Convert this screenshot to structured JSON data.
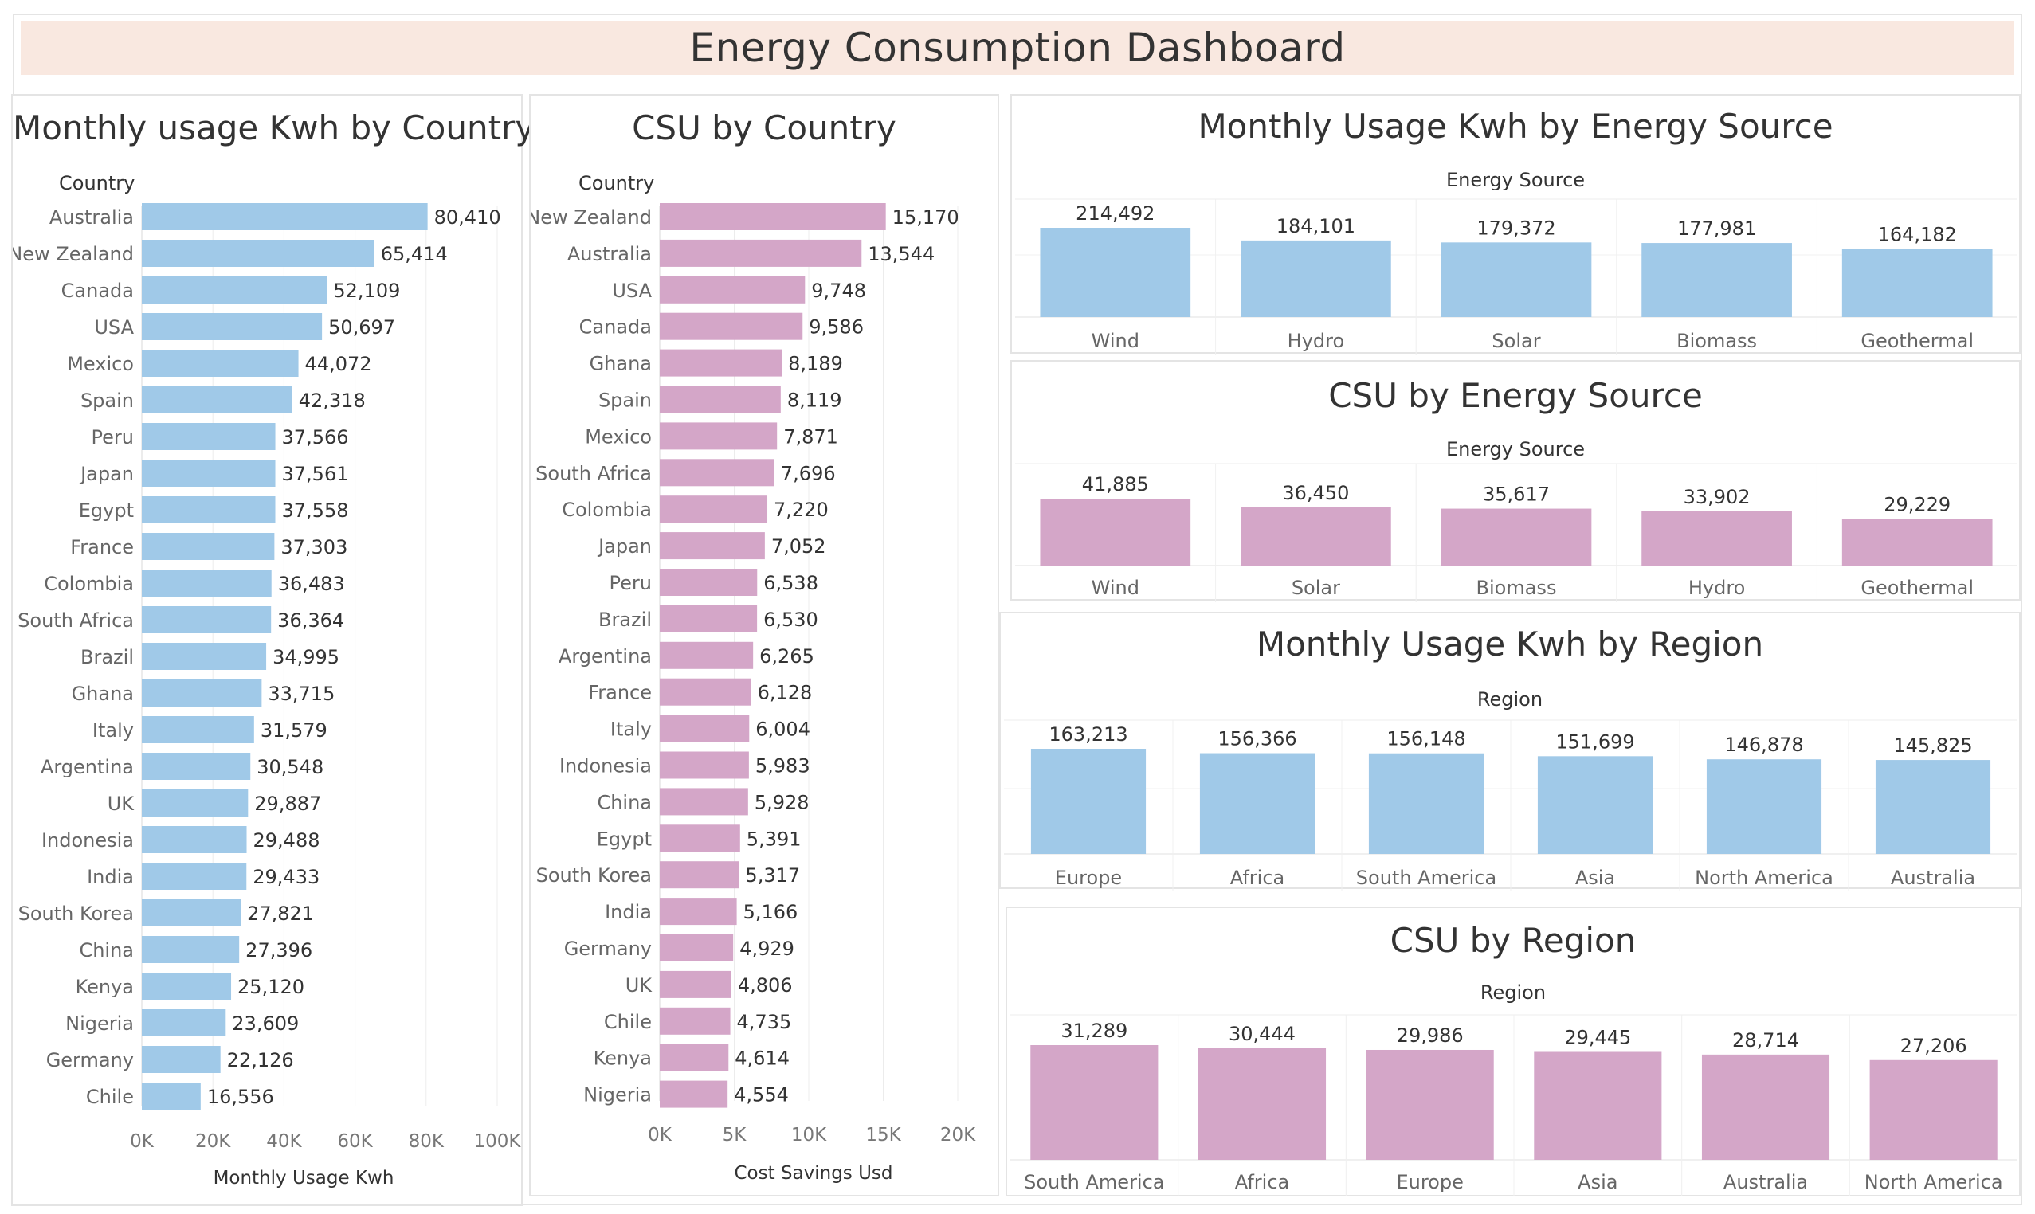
{
  "dashboard": {
    "title": "Energy Consumption Dashboard"
  },
  "colors": {
    "blue": "#a0c9e8",
    "pink": "#d4a6c8",
    "banner": "#f9e8e0"
  },
  "chart_data": [
    {
      "id": "usage_by_country",
      "type": "bar",
      "orientation": "horizontal",
      "title": "Monthly usage Kwh by Country",
      "dimension": "Country",
      "xlabel": "Monthly Usage Kwh",
      "xlim": [
        0,
        100000
      ],
      "ticks": [
        "0K",
        "20K",
        "40K",
        "60K",
        "80K",
        "100K"
      ],
      "tick_values": [
        0,
        20000,
        40000,
        60000,
        80000,
        100000
      ],
      "color": "#a0c9e8",
      "categories": [
        "Australia",
        "New Zealand",
        "Canada",
        "USA",
        "Mexico",
        "Spain",
        "Peru",
        "Japan",
        "Egypt",
        "France",
        "Colombia",
        "South Africa",
        "Brazil",
        "Ghana",
        "Italy",
        "Argentina",
        "UK",
        "Indonesia",
        "India",
        "South Korea",
        "China",
        "Kenya",
        "Nigeria",
        "Germany",
        "Chile"
      ],
      "values": [
        80410,
        65414,
        52109,
        50697,
        44072,
        42318,
        37566,
        37561,
        37558,
        37303,
        36483,
        36364,
        34995,
        33715,
        31579,
        30548,
        29887,
        29488,
        29433,
        27821,
        27396,
        25120,
        23609,
        22126,
        16556
      ],
      "labels": [
        "80,410",
        "65,414",
        "52,109",
        "50,697",
        "44,072",
        "42,318",
        "37,566",
        "37,561",
        "37,558",
        "37,303",
        "36,483",
        "36,364",
        "34,995",
        "33,715",
        "31,579",
        "30,548",
        "29,887",
        "29,488",
        "29,433",
        "27,821",
        "27,396",
        "25,120",
        "23,609",
        "22,126",
        "16,556"
      ]
    },
    {
      "id": "csu_by_country",
      "type": "bar",
      "orientation": "horizontal",
      "title": "CSU by Country",
      "dimension": "Country",
      "xlabel": "Cost Savings Usd",
      "xlim": [
        0,
        20000
      ],
      "ticks": [
        "0K",
        "5K",
        "10K",
        "15K",
        "20K"
      ],
      "tick_values": [
        0,
        5000,
        10000,
        15000,
        20000
      ],
      "color": "#d4a6c8",
      "categories": [
        "New Zealand",
        "Australia",
        "USA",
        "Canada",
        "Ghana",
        "Spain",
        "Mexico",
        "South Africa",
        "Colombia",
        "Japan",
        "Peru",
        "Brazil",
        "Argentina",
        "France",
        "Italy",
        "Indonesia",
        "China",
        "Egypt",
        "South Korea",
        "India",
        "Germany",
        "UK",
        "Chile",
        "Kenya",
        "Nigeria"
      ],
      "values": [
        15170,
        13544,
        9748,
        9586,
        8189,
        8119,
        7871,
        7696,
        7220,
        7052,
        6538,
        6530,
        6265,
        6128,
        6004,
        5983,
        5928,
        5391,
        5317,
        5166,
        4929,
        4806,
        4735,
        4614,
        4554
      ],
      "labels": [
        "15,170",
        "13,544",
        "9,748",
        "9,586",
        "8,189",
        "8,119",
        "7,871",
        "7,696",
        "7,220",
        "7,052",
        "6,538",
        "6,530",
        "6,265",
        "6,128",
        "6,004",
        "5,983",
        "5,928",
        "5,391",
        "5,317",
        "5,166",
        "4,929",
        "4,806",
        "4,735",
        "4,614",
        "4,554"
      ]
    },
    {
      "id": "usage_by_source",
      "type": "bar",
      "orientation": "vertical",
      "title": "Monthly Usage Kwh by Energy Source",
      "dimension": "Energy Source",
      "color": "#a0c9e8",
      "categories": [
        "Wind",
        "Hydro",
        "Solar",
        "Biomass",
        "Geothermal"
      ],
      "values": [
        214492,
        184101,
        179372,
        177981,
        164182
      ],
      "labels": [
        "214,492",
        "184,101",
        "179,372",
        "177,981",
        "164,182"
      ]
    },
    {
      "id": "csu_by_source",
      "type": "bar",
      "orientation": "vertical",
      "title": "CSU by Energy Source",
      "dimension": "Energy Source",
      "color": "#d4a6c8",
      "categories": [
        "Wind",
        "Solar",
        "Biomass",
        "Hydro",
        "Geothermal"
      ],
      "values": [
        41885,
        36450,
        35617,
        33902,
        29229
      ],
      "labels": [
        "41,885",
        "36,450",
        "35,617",
        "33,902",
        "29,229"
      ]
    },
    {
      "id": "usage_by_region",
      "type": "bar",
      "orientation": "vertical",
      "title": "Monthly Usage Kwh by Region",
      "dimension": "Region",
      "color": "#a0c9e8",
      "categories": [
        "Europe",
        "Africa",
        "South America",
        "Asia",
        "North America",
        "Australia"
      ],
      "values": [
        163213,
        156366,
        156148,
        151699,
        146878,
        145825
      ],
      "labels": [
        "163,213",
        "156,366",
        "156,148",
        "151,699",
        "146,878",
        "145,825"
      ]
    },
    {
      "id": "csu_by_region",
      "type": "bar",
      "orientation": "vertical",
      "title": "CSU by Region",
      "dimension": "Region",
      "color": "#d4a6c8",
      "categories": [
        "South America",
        "Africa",
        "Europe",
        "Asia",
        "Australia",
        "North America"
      ],
      "values": [
        31289,
        30444,
        29986,
        29445,
        28714,
        27206
      ],
      "labels": [
        "31,289",
        "30,444",
        "29,986",
        "29,445",
        "28,714",
        "27,206"
      ]
    }
  ]
}
